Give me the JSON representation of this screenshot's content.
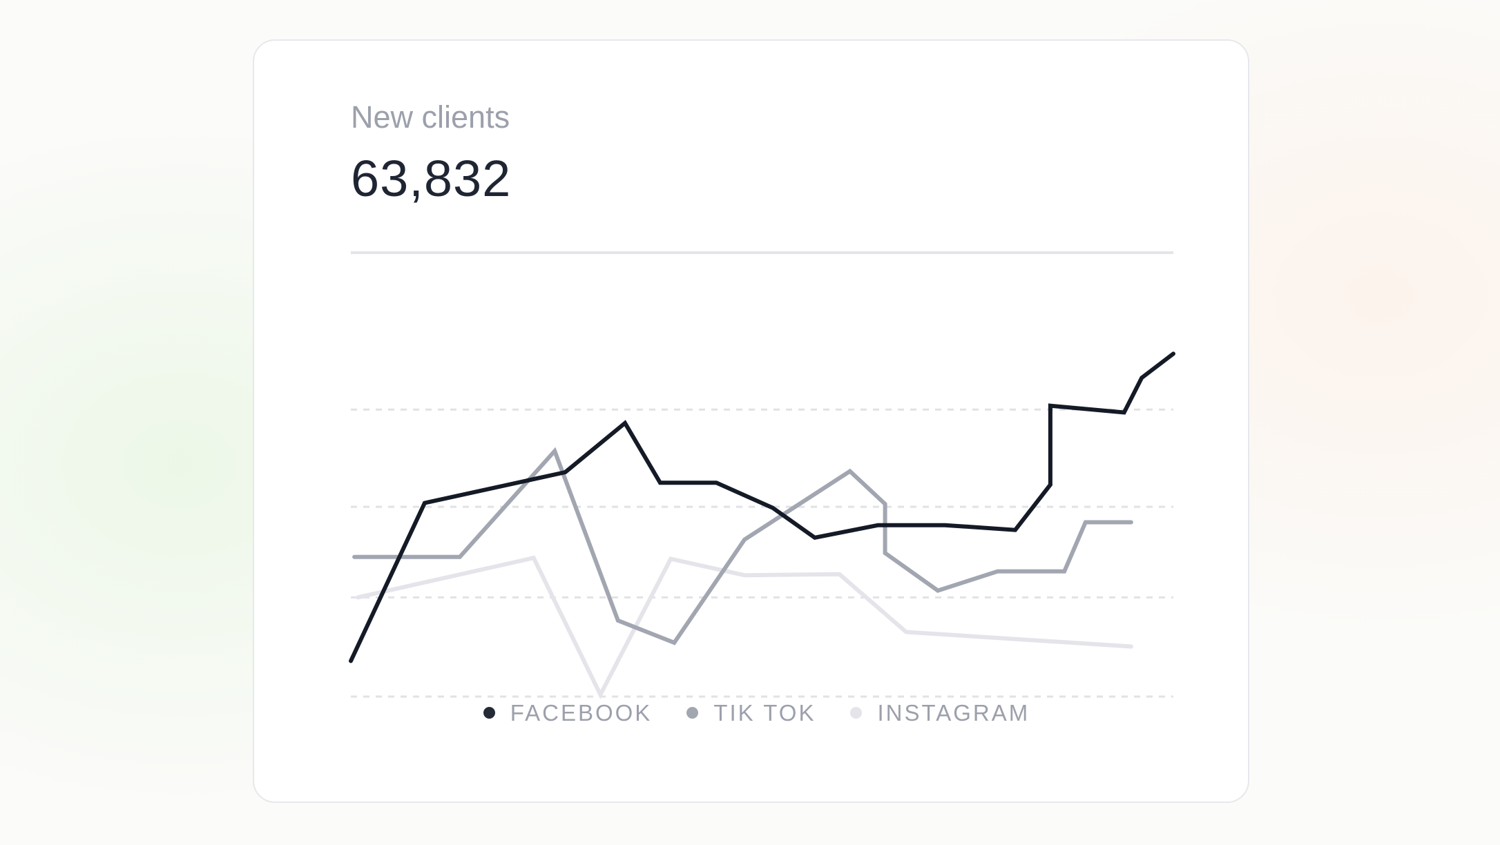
{
  "card": {
    "label": "New clients",
    "value": "63,832"
  },
  "colors": {
    "facebook": "#141a26",
    "tiktok": "#a2a6b1",
    "instagram": "#e4e4ea",
    "divider": "#e4e5e9",
    "gridline": "#e1e2e6"
  },
  "chart_data": {
    "type": "line",
    "title": "",
    "xlabel": "",
    "ylabel": "",
    "x": [
      0,
      1,
      2,
      3,
      4,
      5,
      6,
      7,
      8,
      9,
      10,
      11,
      12,
      13,
      14,
      15,
      16,
      17,
      18,
      19,
      20,
      21,
      22
    ],
    "ylim": [
      0,
      4
    ],
    "grid": true,
    "legend": "bottom-center",
    "series": [
      {
        "name": "FACEBOOK",
        "x": [
          0,
          2.1,
          6.1,
          7.8,
          8.8,
          10.4,
          12.0,
          13.2,
          15.0,
          16.9,
          18.9,
          19.9,
          19.9,
          22.0,
          22.5,
          23.4
        ],
        "values": [
          0.37,
          2.01,
          2.33,
          2.84,
          2.22,
          2.22,
          1.96,
          1.65,
          1.78,
          1.78,
          1.73,
          2.2,
          3.02,
          2.95,
          3.31,
          3.56
        ]
      },
      {
        "name": "TIK TOK",
        "x": [
          0.1,
          3.1,
          5.8,
          7.6,
          9.2,
          11.2,
          14.2,
          15.2,
          15.2,
          16.7,
          18.4,
          20.3,
          20.9,
          22.2
        ],
        "values": [
          1.45,
          1.45,
          2.55,
          0.79,
          0.56,
          1.63,
          2.34,
          2.0,
          1.49,
          1.1,
          1.3,
          1.3,
          1.81,
          1.81
        ]
      },
      {
        "name": "INSTAGRAM",
        "x": [
          0.2,
          5.2,
          7.1,
          9.1,
          11.2,
          13.9,
          15.8,
          22.2
        ],
        "values": [
          1.03,
          1.44,
          0.02,
          1.43,
          1.26,
          1.27,
          0.67,
          0.52
        ]
      }
    ]
  },
  "legend": {
    "items": [
      {
        "label": "FACEBOOK",
        "color": "#242a36"
      },
      {
        "label": "TIK TOK",
        "color": "#a2a6b1"
      },
      {
        "label": "INSTAGRAM",
        "color": "#e4e4ea"
      }
    ]
  }
}
